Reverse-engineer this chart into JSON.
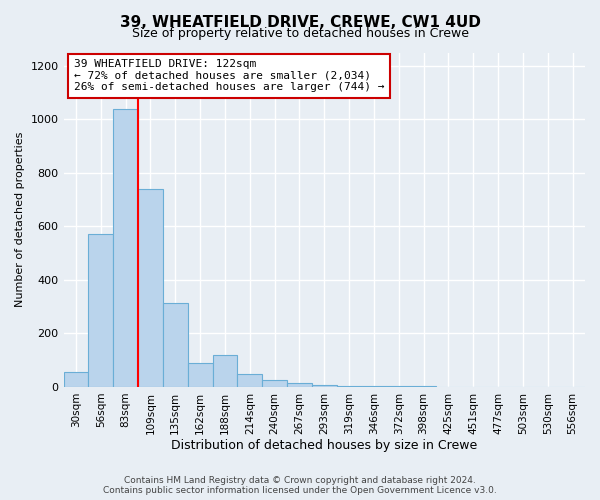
{
  "title": "39, WHEATFIELD DRIVE, CREWE, CW1 4UD",
  "subtitle": "Size of property relative to detached houses in Crewe",
  "xlabel": "Distribution of detached houses by size in Crewe",
  "ylabel": "Number of detached properties",
  "categories": [
    "30sqm",
    "56sqm",
    "83sqm",
    "109sqm",
    "135sqm",
    "162sqm",
    "188sqm",
    "214sqm",
    "240sqm",
    "267sqm",
    "293sqm",
    "319sqm",
    "346sqm",
    "372sqm",
    "398sqm",
    "425sqm",
    "451sqm",
    "477sqm",
    "503sqm",
    "530sqm",
    "556sqm"
  ],
  "values": [
    55,
    570,
    1040,
    740,
    315,
    90,
    120,
    50,
    25,
    15,
    8,
    5,
    3,
    3,
    2,
    1,
    1,
    1,
    1,
    1,
    1
  ],
  "bar_color": "#bad4ec",
  "bar_edge_color": "#6aaed6",
  "ylim": [
    0,
    1250
  ],
  "yticks": [
    0,
    200,
    400,
    600,
    800,
    1000,
    1200
  ],
  "red_line_x": 2.5,
  "annotation_text": "39 WHEATFIELD DRIVE: 122sqm\n← 72% of detached houses are smaller (2,034)\n26% of semi-detached houses are larger (744) →",
  "annotation_box_color": "#ffffff",
  "annotation_box_edge": "#cc0000",
  "footer_text": "Contains HM Land Registry data © Crown copyright and database right 2024.\nContains public sector information licensed under the Open Government Licence v3.0.",
  "bg_color": "#e8eef4",
  "plot_bg_color": "#e8eef4",
  "grid_color": "#ffffff",
  "title_fontsize": 11,
  "subtitle_fontsize": 9,
  "ylabel_fontsize": 8,
  "xlabel_fontsize": 9,
  "tick_fontsize": 8,
  "xtick_fontsize": 7.5,
  "footer_fontsize": 6.5,
  "annot_fontsize": 8
}
